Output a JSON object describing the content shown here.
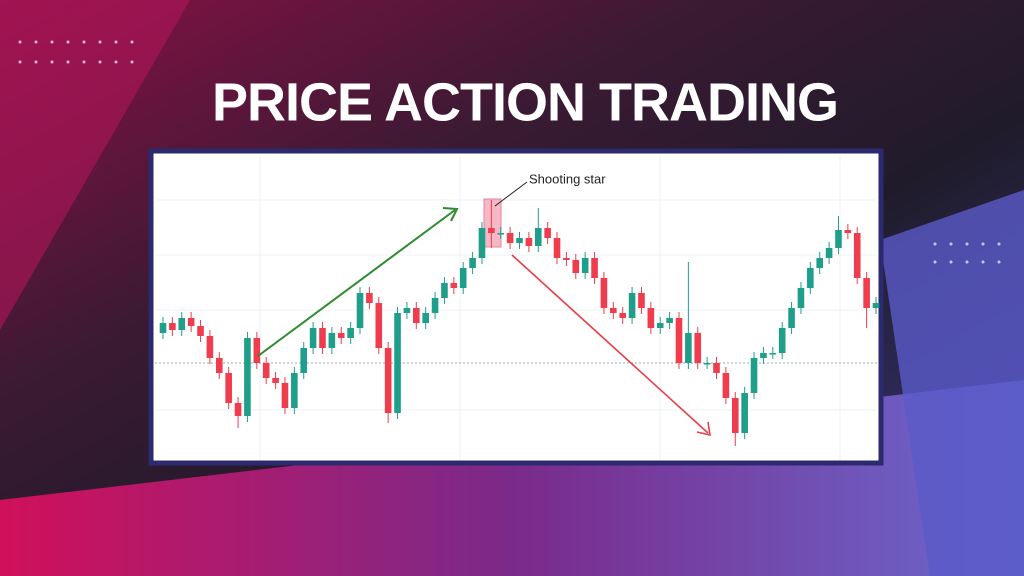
{
  "chart_data": {
    "type": "candlestick",
    "title": "PRICE ACTION TRADING",
    "annotation": "Shooting star",
    "up_color": "#1f9e8a",
    "down_color": "#ef3d4e",
    "ylim": [
      0,
      300
    ],
    "open": [
      125,
      135,
      128,
      140,
      132,
      122,
      100,
      85,
      55,
      42,
      120,
      95,
      80,
      75,
      50,
      85,
      110,
      130,
      110,
      125,
      120,
      130,
      165,
      155,
      110,
      45,
      145,
      150,
      135,
      145,
      160,
      175,
      170,
      190,
      200,
      230,
      225,
      225,
      215,
      220,
      212,
      230,
      220,
      200,
      198,
      185,
      200,
      180,
      150,
      145,
      140,
      165,
      150,
      130,
      135,
      140,
      95,
      125,
      95,
      95,
      85,
      60,
      25,
      65,
      100,
      105,
      105,
      130,
      150,
      170,
      190,
      200,
      210,
      228,
      225,
      180,
      150
    ],
    "high": [
      141,
      141,
      146,
      146,
      138,
      128,
      106,
      91,
      61,
      126,
      126,
      101,
      86,
      81,
      91,
      116,
      136,
      136,
      131,
      131,
      136,
      171,
      171,
      161,
      116,
      151,
      156,
      156,
      151,
      166,
      181,
      181,
      196,
      206,
      236,
      258,
      231,
      231,
      226,
      226,
      250,
      236,
      226,
      206,
      204,
      206,
      206,
      186,
      156,
      151,
      171,
      171,
      156,
      141,
      146,
      146,
      196,
      131,
      101,
      101,
      91,
      66,
      71,
      106,
      111,
      111,
      136,
      156,
      176,
      196,
      206,
      216,
      242,
      234,
      231,
      186,
      161
    ],
    "low": [
      119,
      122,
      122,
      126,
      116,
      94,
      79,
      49,
      30,
      36,
      89,
      74,
      69,
      44,
      44,
      79,
      104,
      104,
      104,
      114,
      114,
      124,
      149,
      104,
      35,
      39,
      139,
      129,
      129,
      139,
      154,
      164,
      164,
      184,
      194,
      210,
      219,
      209,
      209,
      206,
      206,
      214,
      194,
      192,
      179,
      179,
      174,
      144,
      139,
      134,
      134,
      144,
      124,
      124,
      129,
      89,
      89,
      89,
      89,
      79,
      54,
      12,
      19,
      59,
      94,
      99,
      99,
      124,
      144,
      164,
      184,
      194,
      204,
      219,
      174,
      130,
      144
    ],
    "close": [
      135,
      128,
      140,
      132,
      122,
      100,
      85,
      55,
      42,
      120,
      95,
      80,
      75,
      50,
      85,
      110,
      130,
      110,
      125,
      120,
      130,
      165,
      155,
      110,
      45,
      145,
      150,
      135,
      145,
      160,
      175,
      170,
      190,
      200,
      230,
      225,
      225,
      215,
      220,
      212,
      230,
      220,
      200,
      198,
      185,
      200,
      180,
      150,
      145,
      140,
      165,
      150,
      130,
      135,
      140,
      95,
      125,
      95,
      95,
      85,
      60,
      25,
      65,
      100,
      105,
      105,
      130,
      150,
      170,
      190,
      200,
      210,
      228,
      225,
      180,
      150,
      155
    ]
  }
}
